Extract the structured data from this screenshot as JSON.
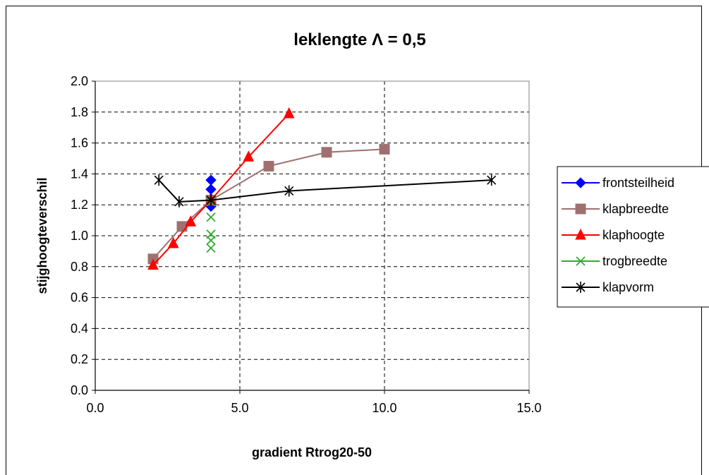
{
  "chart_data": {
    "type": "line",
    "title": "leklengte Λ = 0,5",
    "xlabel": "gradient Rtrog20-50",
    "ylabel": "stijghoogteverschil",
    "xlim": [
      0,
      15
    ],
    "ylim": [
      0,
      2
    ],
    "x_ticks": [
      "0.0",
      "5.0",
      "10.0",
      "15.0"
    ],
    "y_ticks": [
      "0.0",
      "0.2",
      "0.4",
      "0.6",
      "0.8",
      "1.0",
      "1.2",
      "1.4",
      "1.6",
      "1.8",
      "2.0"
    ],
    "grid": "dashed",
    "legend_position": "right",
    "series": [
      {
        "name": "frontsteilheid",
        "color": "#0000ff",
        "marker": "diamond",
        "points": [
          [
            4.0,
            1.36
          ],
          [
            4.0,
            1.3
          ],
          [
            4.0,
            1.24
          ],
          [
            4.0,
            1.19
          ]
        ]
      },
      {
        "name": "klapbreedte",
        "color": "#a07070",
        "marker": "square",
        "points": [
          [
            2.0,
            0.85
          ],
          [
            3.0,
            1.06
          ],
          [
            4.0,
            1.23
          ],
          [
            6.0,
            1.45
          ],
          [
            8.0,
            1.54
          ],
          [
            10.0,
            1.56
          ]
        ]
      },
      {
        "name": "klaphoogte",
        "color": "#ff0000",
        "marker": "triangle",
        "points": [
          [
            2.0,
            0.81
          ],
          [
            2.7,
            0.95
          ],
          [
            3.3,
            1.09
          ],
          [
            4.0,
            1.23
          ],
          [
            5.3,
            1.51
          ],
          [
            6.7,
            1.79
          ]
        ]
      },
      {
        "name": "trogbreedte",
        "color": "#33aa33",
        "marker": "x",
        "line": false,
        "points": [
          [
            4.0,
            1.22
          ],
          [
            4.0,
            1.12
          ],
          [
            4.0,
            1.01
          ],
          [
            4.0,
            0.97
          ],
          [
            4.0,
            0.92
          ]
        ]
      },
      {
        "name": "klapvorm",
        "color": "#000000",
        "marker": "star",
        "points": [
          [
            2.2,
            1.36
          ],
          [
            2.9,
            1.22
          ],
          [
            4.0,
            1.23
          ],
          [
            6.7,
            1.29
          ],
          [
            13.7,
            1.36
          ]
        ]
      }
    ]
  }
}
